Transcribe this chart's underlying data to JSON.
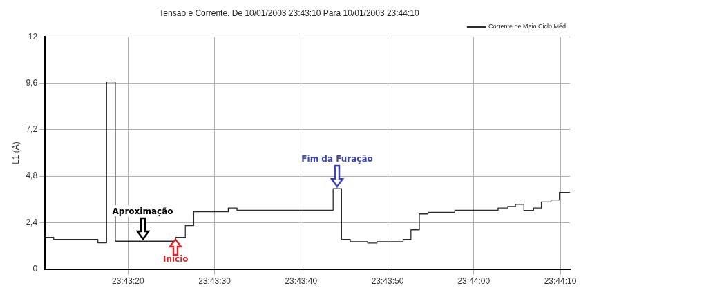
{
  "chart_data": {
    "type": "step",
    "title": "Tensão e Corrente. De 10/01/2003 23:43:10 Para 10/01/2003 23:44:10",
    "ylabel": "L1 (A)",
    "x": [
      23.71955,
      23.71983,
      23.72125,
      23.72153,
      23.72181,
      23.72375,
      23.72406,
      23.72433,
      23.72544,
      23.72572,
      23.72881,
      23.72908,
      23.72936,
      23.72992,
      23.73022,
      23.73106,
      23.73131,
      23.73158,
      23.73186,
      23.73272,
      23.73411,
      23.73442,
      23.73467,
      23.73494,
      23.73525,
      23.7355,
      23.73581,
      23.73608,
      23.73642
    ],
    "series": [
      {
        "name": "Corrente de Meio Ciclo Méd",
        "color": "#2b2b2b",
        "values": [
          1.64,
          1.53,
          1.36,
          9.67,
          1.44,
          1.64,
          2.25,
          2.96,
          3.16,
          3.04,
          4.16,
          1.53,
          1.42,
          1.35,
          1.42,
          1.53,
          2.03,
          2.85,
          2.93,
          3.04,
          3.16,
          3.24,
          3.35,
          3.03,
          3.16,
          3.47,
          3.57,
          3.96,
          3.96
        ]
      }
    ],
    "xlim": [
      23.71955,
      23.73642
    ],
    "xticks": [
      {
        "value": 23.72222,
        "label": "23:43:20"
      },
      {
        "value": 23.725,
        "label": "23:43:30"
      },
      {
        "value": 23.72778,
        "label": "23:43:40"
      },
      {
        "value": 23.73056,
        "label": "23:43:50"
      },
      {
        "value": 23.73333,
        "label": "23:44:00"
      },
      {
        "value": 23.73611,
        "label": "23:44:10"
      }
    ],
    "ylim": [
      0,
      12
    ],
    "yticks": [
      0,
      {
        "value": 2.4,
        "label": "2,4"
      },
      {
        "value": 4.8,
        "label": "4,8"
      },
      {
        "value": 7.2,
        "label": "7,2"
      },
      {
        "value": 9.6,
        "label": "9,6"
      },
      12
    ],
    "annotations": [
      {
        "text": "Aproximação",
        "x": 23.72269,
        "y": 1.44
      },
      {
        "text": "Inicio",
        "x": 23.72375,
        "y": 1.64
      },
      {
        "text": "Fim da Furação",
        "x": 23.72894,
        "y": 4.16
      }
    ],
    "grid": true,
    "legend": "top right",
    "marker": "none",
    "line_style": "solid"
  }
}
